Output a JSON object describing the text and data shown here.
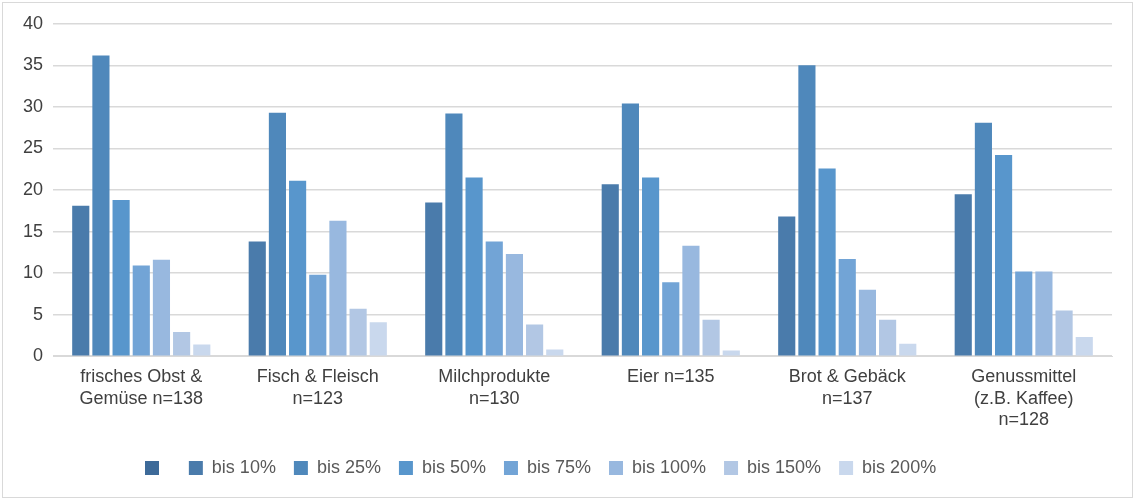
{
  "chart_data": {
    "type": "bar",
    "categories": [
      "frisches Obst & Gemüse n=138",
      "Fisch & Fleisch n=123",
      "Milchprodukte n=130",
      "Eier n=135",
      "Brot & Gebäck n=137",
      "Genussmittel (z.B. Kaffee) n=128"
    ],
    "series": [
      {
        "name": "bis 10%",
        "color": "#4a7bab",
        "values": [
          18.1,
          13.8,
          18.5,
          20.7,
          16.8,
          19.5
        ]
      },
      {
        "name": "bis 25%",
        "color": "#4f88bb",
        "values": [
          36.2,
          29.3,
          29.2,
          30.4,
          35.0,
          28.1
        ]
      },
      {
        "name": "bis 50%",
        "color": "#5896cc",
        "values": [
          18.8,
          21.1,
          21.5,
          21.5,
          22.6,
          24.2
        ]
      },
      {
        "name": "bis 75%",
        "color": "#72a4d6",
        "values": [
          10.9,
          9.8,
          13.8,
          8.9,
          11.7,
          10.2
        ]
      },
      {
        "name": "bis 100%",
        "color": "#98b8df",
        "values": [
          11.6,
          16.3,
          12.3,
          13.3,
          8.0,
          10.2
        ]
      },
      {
        "name": "bis 150%",
        "color": "#b2c7e4",
        "values": [
          2.9,
          5.7,
          3.8,
          4.4,
          4.4,
          5.5
        ]
      },
      {
        "name": "bis 200%",
        "color": "#c9d8ed",
        "values": [
          1.4,
          4.1,
          0.8,
          0.7,
          1.5,
          2.3
        ]
      }
    ],
    "ylim": [
      0,
      40
    ],
    "yticks": [
      0,
      5,
      10,
      15,
      20,
      25,
      30,
      35,
      40
    ],
    "grid": "y",
    "legend": "bottom"
  }
}
